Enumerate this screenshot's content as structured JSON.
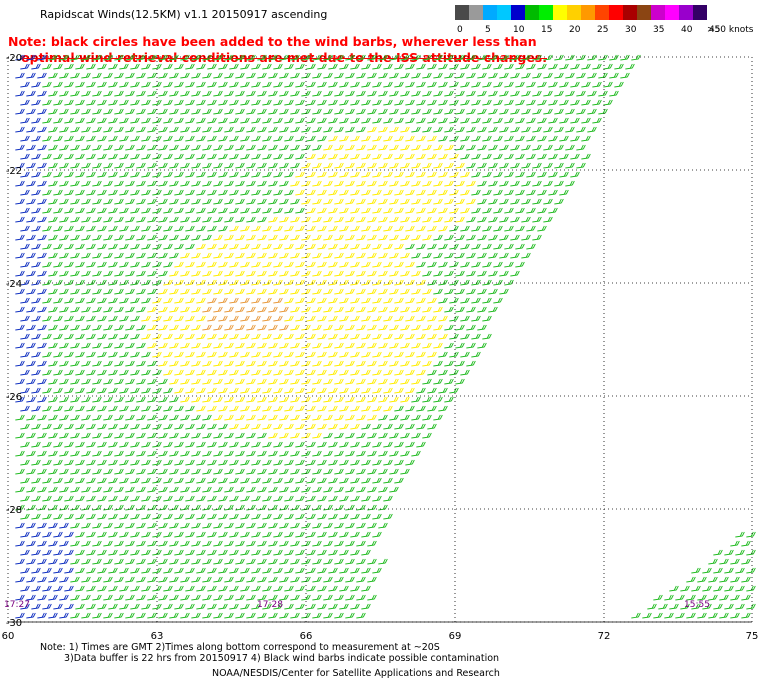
{
  "title": "Rapidscat Winds(12.5KM) v1.1 20150917 ascending",
  "note": {
    "line1": "Note: black circles have been added to the wind barbs, wherever less than",
    "line2": "optimal wind retrieval conditions are met due to the ISS attitude changes."
  },
  "speed_scale": {
    "units_label": ">50 knots",
    "ticks": [
      "0",
      "5",
      "10",
      "15",
      "20",
      "25",
      "30",
      "35",
      "40",
      "45"
    ],
    "colors": [
      "#4a4a4a",
      "#9a9a9a",
      "#00aaff",
      "#00c8ff",
      "#0000cc",
      "#00bb00",
      "#00ee00",
      "#ffff00",
      "#ffd000",
      "#ff9900",
      "#ff4400",
      "#ff0000",
      "#aa0000",
      "#8b4513",
      "#cc00cc",
      "#ff00ff",
      "#9900cc",
      "#330066"
    ]
  },
  "map": {
    "lat_labels": [
      "-20",
      "-22",
      "-24",
      "-26",
      "-28",
      "-30"
    ],
    "lon_labels": [
      "60",
      "63",
      "66",
      "69",
      "72",
      "75"
    ],
    "time_labels": [
      "17:27",
      "17:28",
      "15:55"
    ]
  },
  "footer": {
    "line1": "Note: 1) Times are GMT 2)Times along bottom correspond to measurement at ~20S",
    "line2": "3)Data buffer is 22 hrs from 20150917 4) Black wind barbs indicate possible contamination",
    "credit": "NOAA/NESDIS/Center for Satellite Applications and Research"
  }
}
